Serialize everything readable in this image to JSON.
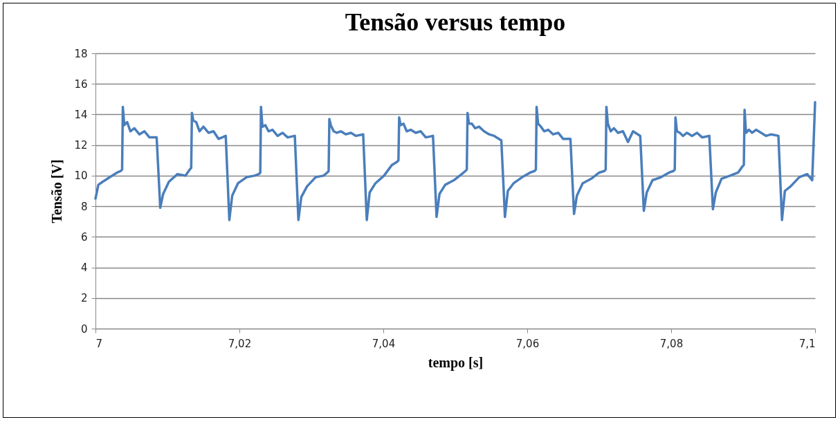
{
  "chart_data": {
    "type": "line",
    "title": "Tensão versus tempo",
    "xlabel": "tempo [s]",
    "ylabel": "Tensão [V]",
    "xlim": [
      7,
      7.1
    ],
    "xticks": [
      {
        "value": 7,
        "label": "7"
      },
      {
        "value": 7.02,
        "label": "7,02"
      },
      {
        "value": 7.04,
        "label": "7,04"
      },
      {
        "value": 7.06,
        "label": "7,06"
      },
      {
        "value": 7.08,
        "label": "7,08"
      },
      {
        "value": 7.1,
        "label": "7,1"
      }
    ],
    "ylim": [
      0,
      18
    ],
    "yticks": [
      0,
      2,
      4,
      6,
      8,
      10,
      12,
      14,
      16,
      18
    ],
    "grid": "y",
    "marker": "none",
    "line_style": "solid",
    "series": [
      {
        "color": "#4a7ebb",
        "x": [
          7.0,
          7.0004,
          7.001,
          7.002,
          7.003,
          7.0035,
          7.0037,
          7.0038,
          7.004,
          7.0044,
          7.00485,
          7.0054,
          7.0061,
          7.0068,
          7.0075,
          7.0085,
          7.009,
          7.0094,
          7.0102,
          7.0114,
          7.0125,
          7.0131,
          7.0133,
          7.0134,
          7.0136,
          7.014,
          7.01445,
          7.015,
          7.0157,
          7.0164,
          7.0171,
          7.0181,
          7.0186,
          7.019,
          7.0198,
          7.021,
          7.0221,
          7.0227,
          7.0229,
          7.023,
          7.0232,
          7.0236,
          7.02405,
          7.0246,
          7.0253,
          7.026,
          7.0267,
          7.0277,
          7.0282,
          7.0286,
          7.0294,
          7.0306,
          7.0317,
          7.0322,
          7.0324,
          7.0325,
          7.0327,
          7.0331,
          7.03355,
          7.0341,
          7.0348,
          7.0355,
          7.0362,
          7.0372,
          7.0377,
          7.0381,
          7.0389,
          7.0401,
          7.0412,
          7.0419,
          7.0421,
          7.0422,
          7.0424,
          7.0428,
          7.04325,
          7.0438,
          7.0445,
          7.0452,
          7.0459,
          7.0469,
          7.0474,
          7.0478,
          7.0486,
          7.0498,
          7.0509,
          7.0514,
          7.0516,
          7.0517,
          7.0519,
          7.0523,
          7.05275,
          7.0533,
          7.054,
          7.0547,
          7.0554,
          7.0564,
          7.0569,
          7.0573,
          7.0581,
          7.0593,
          7.0604,
          7.061,
          7.0612,
          7.0613,
          7.0615,
          7.0619,
          7.06235,
          7.0629,
          7.0636,
          7.0643,
          7.065,
          7.066,
          7.0665,
          7.0669,
          7.0677,
          7.0689,
          7.07,
          7.0707,
          7.0709,
          7.071,
          7.0712,
          7.0716,
          7.07205,
          7.0726,
          7.0733,
          7.074,
          7.0747,
          7.0757,
          7.0762,
          7.0766,
          7.0774,
          7.0786,
          7.0797,
          7.0803,
          7.0805,
          7.0806,
          7.0808,
          7.0812,
          7.08165,
          7.0822,
          7.0829,
          7.0836,
          7.0843,
          7.0853,
          7.0858,
          7.0862,
          7.087,
          7.0882,
          7.0893,
          7.0899,
          7.0901,
          7.0902,
          7.0904,
          7.0908,
          7.09125,
          7.0918,
          7.0925,
          7.0932,
          7.0939,
          7.0949,
          7.0954,
          7.0958,
          7.0966,
          7.0978,
          7.0989,
          7.0996,
          7.1
        ],
        "values": [
          8.5,
          9.4,
          9.6,
          9.9,
          10.2,
          10.3,
          10.4,
          14.5,
          13.3,
          13.5,
          12.9,
          13.1,
          12.7,
          12.9,
          12.5,
          12.5,
          7.9,
          8.8,
          9.6,
          10.1,
          10.0,
          10.4,
          10.5,
          14.1,
          13.6,
          13.5,
          12.9,
          13.2,
          12.8,
          12.9,
          12.4,
          12.6,
          7.1,
          8.7,
          9.5,
          9.9,
          10.0,
          10.1,
          10.2,
          14.5,
          13.2,
          13.3,
          12.9,
          13.0,
          12.6,
          12.8,
          12.5,
          12.6,
          7.1,
          8.6,
          9.3,
          9.9,
          10.0,
          10.2,
          10.3,
          13.7,
          13.3,
          12.9,
          12.8,
          12.9,
          12.7,
          12.8,
          12.6,
          12.7,
          7.1,
          8.9,
          9.5,
          10.0,
          10.7,
          10.9,
          11.0,
          13.8,
          13.3,
          13.4,
          12.9,
          13.0,
          12.8,
          12.9,
          12.5,
          12.6,
          7.3,
          8.8,
          9.4,
          9.7,
          10.1,
          10.3,
          10.4,
          14.1,
          13.4,
          13.4,
          13.1,
          13.2,
          12.9,
          12.7,
          12.6,
          12.3,
          7.3,
          9.0,
          9.5,
          9.9,
          10.2,
          10.3,
          10.4,
          14.5,
          13.4,
          13.2,
          12.9,
          13.0,
          12.7,
          12.8,
          12.4,
          12.4,
          7.5,
          8.7,
          9.5,
          9.8,
          10.2,
          10.3,
          10.4,
          14.5,
          13.4,
          12.9,
          13.1,
          12.8,
          12.9,
          12.2,
          12.9,
          12.6,
          7.7,
          8.9,
          9.7,
          9.9,
          10.2,
          10.3,
          10.4,
          13.8,
          12.9,
          12.8,
          12.6,
          12.8,
          12.6,
          12.8,
          12.5,
          12.6,
          7.8,
          8.9,
          9.8,
          10.0,
          10.2,
          10.6,
          10.7,
          14.3,
          12.8,
          13.0,
          12.8,
          13.0,
          12.8,
          12.6,
          12.7,
          12.6,
          7.1,
          9.0,
          9.3,
          9.9,
          10.1,
          9.7,
          14.8
        ]
      }
    ]
  }
}
